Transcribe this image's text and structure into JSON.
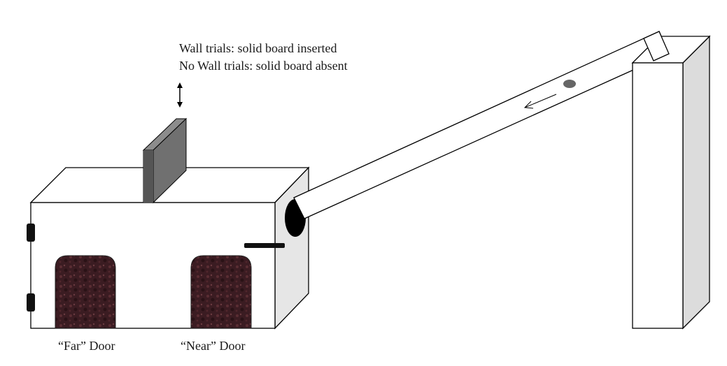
{
  "captions": {
    "wall_trials": "Wall trials: solid board inserted",
    "no_wall_trials": "No Wall trials: solid board absent"
  },
  "doors": {
    "far_label": "“Far” Door",
    "near_label": "“Near” Door"
  },
  "colors": {
    "outline": "#000000",
    "box_front": "#ffffff",
    "box_side": "#e6e6e6",
    "board_front": "#555555",
    "board_edge": "#8c8c8c",
    "door_fill": "#3b1c22",
    "ball": "#666666"
  },
  "icons": [
    "double-arrow-icon",
    "direction-arrow-icon",
    "latch-icon",
    "handle-icon"
  ]
}
